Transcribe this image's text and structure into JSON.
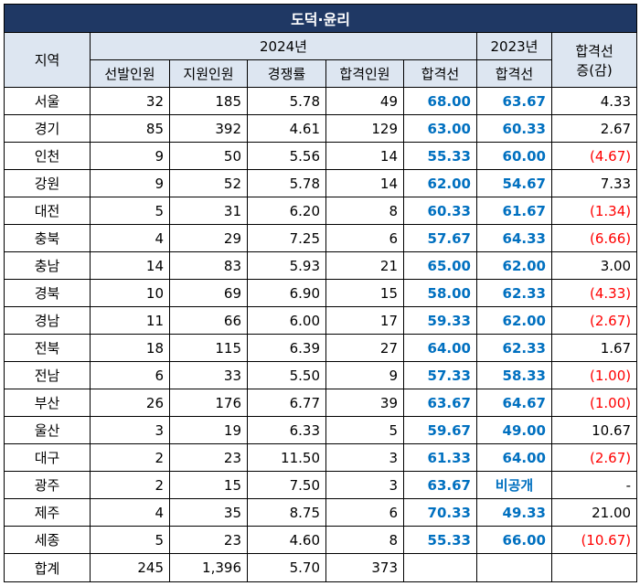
{
  "title": "도덕·윤리",
  "headers": {
    "region": "지역",
    "year2024": "2024년",
    "year2023": "2023년",
    "change_line1": "합격선",
    "change_line2": "증(감)",
    "cols2024": [
      "선발인원",
      "지원인원",
      "경쟁률",
      "합격인원",
      "합격선"
    ],
    "col2023": "합격선"
  },
  "rows": [
    {
      "region": "서울",
      "sel": "32",
      "app": "185",
      "ratio": "5.78",
      "pass": "49",
      "cut24": "68.00",
      "cut23": "63.67",
      "chg": "4.33",
      "neg": false
    },
    {
      "region": "경기",
      "sel": "85",
      "app": "392",
      "ratio": "4.61",
      "pass": "129",
      "cut24": "63.00",
      "cut23": "60.33",
      "chg": "2.67",
      "neg": false
    },
    {
      "region": "인천",
      "sel": "9",
      "app": "50",
      "ratio": "5.56",
      "pass": "14",
      "cut24": "55.33",
      "cut23": "60.00",
      "chg": "(4.67)",
      "neg": true
    },
    {
      "region": "강원",
      "sel": "9",
      "app": "52",
      "ratio": "5.78",
      "pass": "14",
      "cut24": "62.00",
      "cut23": "54.67",
      "chg": "7.33",
      "neg": false
    },
    {
      "region": "대전",
      "sel": "5",
      "app": "31",
      "ratio": "6.20",
      "pass": "8",
      "cut24": "60.33",
      "cut23": "61.67",
      "chg": "(1.34)",
      "neg": true
    },
    {
      "region": "충북",
      "sel": "4",
      "app": "29",
      "ratio": "7.25",
      "pass": "6",
      "cut24": "57.67",
      "cut23": "64.33",
      "chg": "(6.66)",
      "neg": true
    },
    {
      "region": "충남",
      "sel": "14",
      "app": "83",
      "ratio": "5.93",
      "pass": "21",
      "cut24": "65.00",
      "cut23": "62.00",
      "chg": "3.00",
      "neg": false
    },
    {
      "region": "경북",
      "sel": "10",
      "app": "69",
      "ratio": "6.90",
      "pass": "15",
      "cut24": "58.00",
      "cut23": "62.33",
      "chg": "(4.33)",
      "neg": true
    },
    {
      "region": "경남",
      "sel": "11",
      "app": "66",
      "ratio": "6.00",
      "pass": "17",
      "cut24": "59.33",
      "cut23": "62.00",
      "chg": "(2.67)",
      "neg": true
    },
    {
      "region": "전북",
      "sel": "18",
      "app": "115",
      "ratio": "6.39",
      "pass": "27",
      "cut24": "64.00",
      "cut23": "62.33",
      "chg": "1.67",
      "neg": false
    },
    {
      "region": "전남",
      "sel": "6",
      "app": "33",
      "ratio": "5.50",
      "pass": "9",
      "cut24": "57.33",
      "cut23": "58.33",
      "chg": "(1.00)",
      "neg": true
    },
    {
      "region": "부산",
      "sel": "26",
      "app": "176",
      "ratio": "6.77",
      "pass": "39",
      "cut24": "63.67",
      "cut23": "64.67",
      "chg": "(1.00)",
      "neg": true
    },
    {
      "region": "울산",
      "sel": "3",
      "app": "19",
      "ratio": "6.33",
      "pass": "5",
      "cut24": "59.67",
      "cut23": "49.00",
      "chg": "10.67",
      "neg": false
    },
    {
      "region": "대구",
      "sel": "2",
      "app": "23",
      "ratio": "11.50",
      "pass": "3",
      "cut24": "61.33",
      "cut23": "64.00",
      "chg": "(2.67)",
      "neg": true
    },
    {
      "region": "광주",
      "sel": "2",
      "app": "15",
      "ratio": "7.50",
      "pass": "3",
      "cut24": "63.67",
      "cut23": "비공개",
      "chg": "-",
      "neg": false
    },
    {
      "region": "제주",
      "sel": "4",
      "app": "35",
      "ratio": "8.75",
      "pass": "6",
      "cut24": "70.33",
      "cut23": "49.33",
      "chg": "21.00",
      "neg": false
    },
    {
      "region": "세종",
      "sel": "5",
      "app": "23",
      "ratio": "4.60",
      "pass": "8",
      "cut24": "55.33",
      "cut23": "66.00",
      "chg": "(10.67)",
      "neg": true
    }
  ],
  "total": {
    "region": "합계",
    "sel": "245",
    "app": "1,396",
    "ratio": "5.70",
    "pass": "373"
  },
  "colors": {
    "title_bg": "#1f3864",
    "header_bg": "#dde6f1",
    "cutoff_blue": "#0070c0",
    "negative_red": "#ff0000"
  }
}
